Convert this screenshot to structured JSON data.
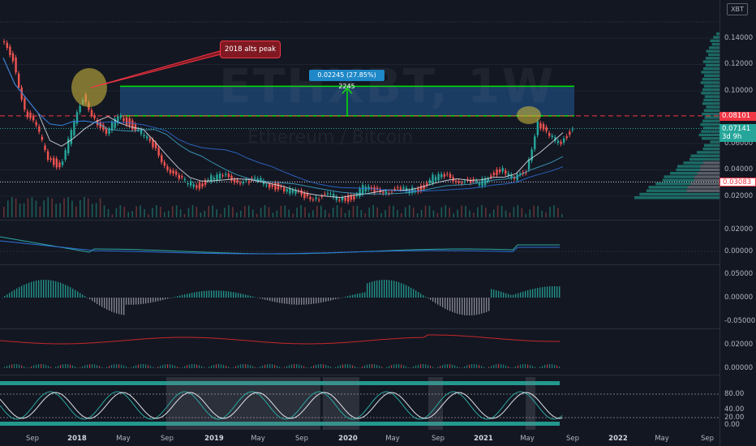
{
  "symbol_button": "XBT",
  "watermark": {
    "title": "ETHXBT, 1W",
    "subtitle": "Ethereum / Bitcoin"
  },
  "annotation": {
    "callout": "2018 alts peak",
    "measure": "0.02245 (27.85%) 2245"
  },
  "price_axis": {
    "ticks": [
      "0.14000",
      "0.12000",
      "0.10000",
      "0.06000",
      "0.04000",
      "0.02000"
    ],
    "tags": {
      "resistance": "0.08101",
      "last_price": "0.07141",
      "countdown": "3d 9h",
      "low": "0.03083"
    }
  },
  "indicator_axes": {
    "pane1": [
      "0.02000",
      "0.00000"
    ],
    "pane2": [
      "0.05000",
      "0.00000",
      "-0.05000"
    ],
    "pane3": [
      "0.02000",
      "0.00000"
    ],
    "pane4": [
      "80.00",
      "40.00",
      "20.00",
      "0.00"
    ]
  },
  "time_axis": [
    {
      "label": "Sep",
      "bold": false
    },
    {
      "label": "2018",
      "bold": true
    },
    {
      "label": "May",
      "bold": false
    },
    {
      "label": "Sep",
      "bold": false
    },
    {
      "label": "2019",
      "bold": true
    },
    {
      "label": "May",
      "bold": false
    },
    {
      "label": "Sep",
      "bold": false
    },
    {
      "label": "2020",
      "bold": true
    },
    {
      "label": "May",
      "bold": false
    },
    {
      "label": "Sep",
      "bold": false
    },
    {
      "label": "2021",
      "bold": true
    },
    {
      "label": "May",
      "bold": false
    },
    {
      "label": "Sep",
      "bold": false
    },
    {
      "label": "2022",
      "bold": true
    },
    {
      "label": "May",
      "bold": false
    },
    {
      "label": "Sep",
      "bold": false
    }
  ],
  "colors": {
    "up": "#26a69a",
    "down": "#ef5350",
    "box": "#1e4a7a",
    "box_line": "#00e600",
    "resistance": "#f23645",
    "highlight": "#c8b23c"
  },
  "chart_data": {
    "type": "candlestick",
    "pair": "ETHXBT",
    "interval": "1W",
    "x": [
      "2017-08",
      "2017-09",
      "2017-10",
      "2017-11",
      "2017-12",
      "2018-01",
      "2018-02",
      "2018-03",
      "2018-04",
      "2018-05",
      "2018-06",
      "2018-07",
      "2018-08",
      "2018-09",
      "2018-10",
      "2018-11",
      "2018-12",
      "2019-01",
      "2019-02",
      "2019-03",
      "2019-04",
      "2019-05",
      "2019-06",
      "2019-07",
      "2019-08",
      "2019-09",
      "2019-10",
      "2019-11",
      "2019-12",
      "2020-01",
      "2020-02",
      "2020-03",
      "2020-04",
      "2020-05",
      "2020-06",
      "2020-07",
      "2020-08",
      "2020-09",
      "2020-10",
      "2020-11",
      "2020-12",
      "2021-01",
      "2021-02",
      "2021-03",
      "2021-04",
      "2021-05",
      "2021-06",
      "2021-07",
      "2021-08"
    ],
    "close": [
      0.125,
      0.085,
      0.072,
      0.05,
      0.042,
      0.068,
      0.095,
      0.08,
      0.065,
      0.082,
      0.075,
      0.068,
      0.058,
      0.045,
      0.034,
      0.03,
      0.028,
      0.034,
      0.035,
      0.033,
      0.031,
      0.032,
      0.029,
      0.026,
      0.023,
      0.021,
      0.019,
      0.02,
      0.019,
      0.018,
      0.026,
      0.024,
      0.025,
      0.024,
      0.025,
      0.026,
      0.034,
      0.035,
      0.033,
      0.031,
      0.029,
      0.037,
      0.04,
      0.032,
      0.04,
      0.076,
      0.064,
      0.062,
      0.071
    ],
    "levels": {
      "resistance": 0.08101,
      "measure_top": 0.10346,
      "low_line": 0.03083,
      "last": 0.07141
    },
    "ylim": [
      0.015,
      0.15
    ]
  }
}
